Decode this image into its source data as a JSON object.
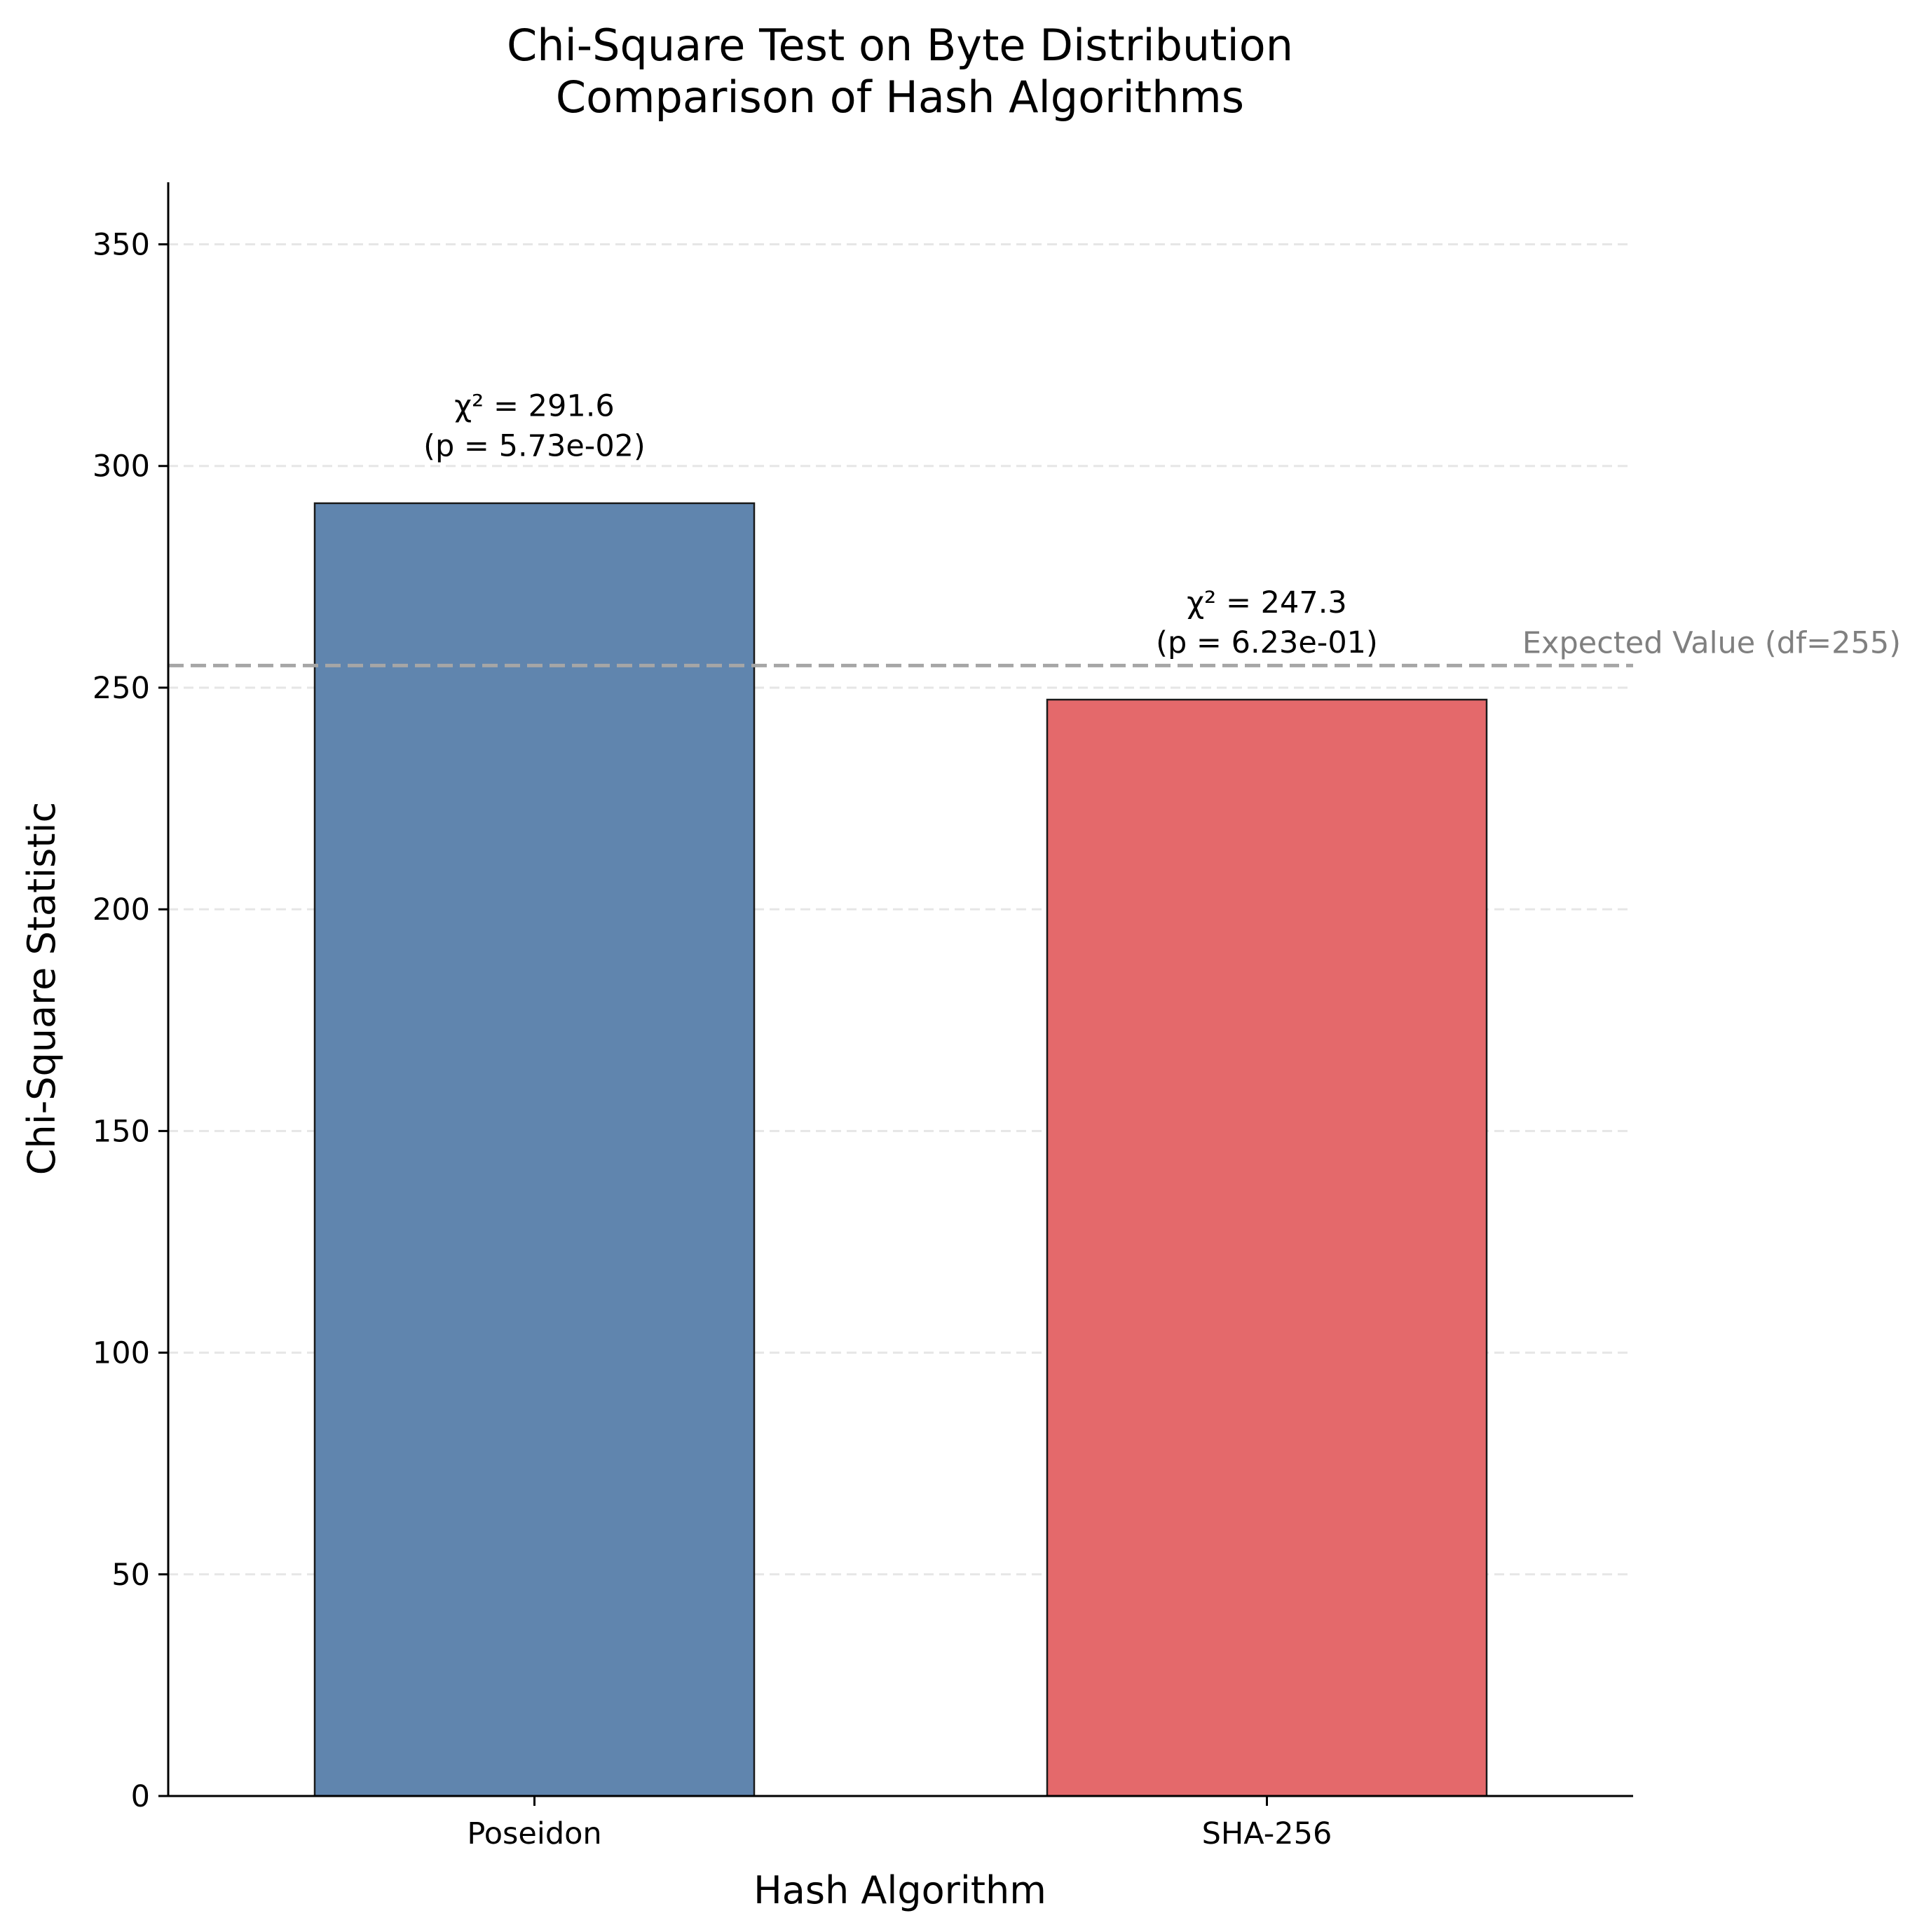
{
  "chart_data": {
    "type": "bar",
    "title": "Chi-Square Test on Byte Distribution",
    "subtitle": "Comparison of Hash Algorithms",
    "xlabel": "Hash Algorithm",
    "ylabel": "Chi-Square Statistic",
    "categories": [
      "Poseidon",
      "SHA-256"
    ],
    "values": [
      291.6,
      247.3
    ],
    "bar_colors": [
      "#6085ae",
      "#e4696b"
    ],
    "data_labels": [
      [
        "χ² = 291.6",
        "(p = 5.73e-02)"
      ],
      [
        "χ² = 247.3",
        "(p = 6.23e-01)"
      ]
    ],
    "ylim": [
      0,
      364
    ],
    "yticks": [
      0,
      50,
      100,
      150,
      200,
      250,
      300,
      350
    ],
    "grid": true,
    "reference_line": {
      "value": 255,
      "label": "Expected Value (df=255)",
      "color": "#a6a6a6",
      "label_color": "#808080"
    }
  }
}
